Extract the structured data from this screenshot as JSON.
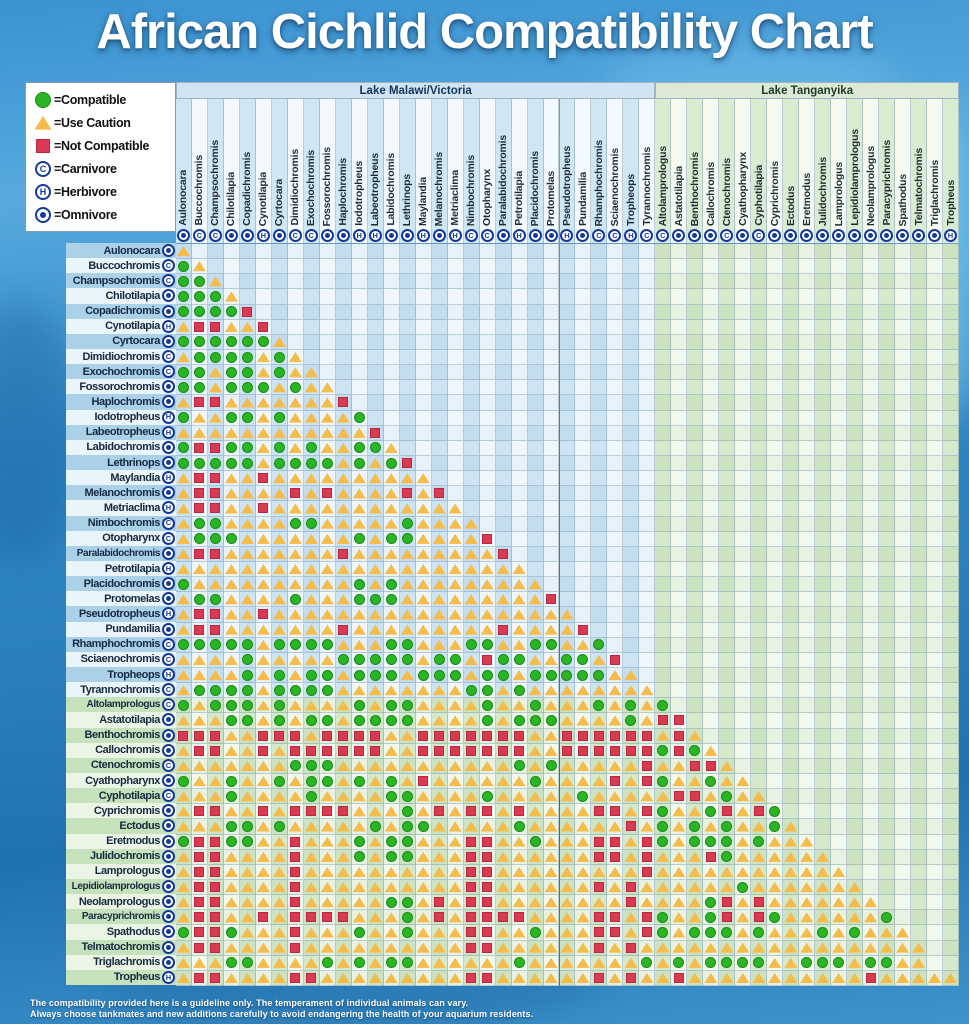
{
  "title": "African Cichlid Compatibility Chart",
  "legend": {
    "items": [
      {
        "icon": "compatible-icon",
        "label": "=Compatible"
      },
      {
        "icon": "use-caution-icon",
        "label": "=Use Caution"
      },
      {
        "icon": "not-compatible-icon",
        "label": "=Not Compatible"
      },
      {
        "icon": "carnivore-icon",
        "letter": "C",
        "label": "=Carnivore"
      },
      {
        "icon": "herbivore-icon",
        "letter": "H",
        "label": "=Herbivore"
      },
      {
        "icon": "omnivore-icon",
        "letter": "O",
        "label": "=Omnivore"
      }
    ]
  },
  "groups": [
    {
      "id": "malawi",
      "label": "Lake Malawi/Victoria",
      "start": 0,
      "count": 30
    },
    {
      "id": "tanganyika",
      "label": "Lake Tanganyika",
      "start": 30,
      "count": 19
    }
  ],
  "footer": {
    "line1": "The compatibility provided here is a guideline only. The temperament of individual animals can vary.",
    "line2": "Always choose tankmates and new additions carefully to avoid endangering the health of your aquarium residents."
  },
  "colors": {
    "compatible": "#2cb424",
    "caution": "#f5bb4b",
    "not_compatible": "#da3952",
    "diet_badge": "#15389b",
    "malawi_band": "#d2e4f4",
    "tanganyika_band": "#dcead4"
  },
  "chart_data": {
    "type": "heatmap",
    "title": "African Cichlid Compatibility Chart",
    "legend_position": "top-left",
    "cell_codes": {
      "G": "Compatible",
      "Y": "Use Caution",
      "R": "Not Compatible"
    },
    "diet_codes": {
      "C": "Carnivore",
      "H": "Herbivore",
      "O": "Omnivore"
    },
    "species": [
      {
        "name": "Aulonocara",
        "diet": "O",
        "lake": "malawi"
      },
      {
        "name": "Buccochromis",
        "diet": "C",
        "lake": "malawi"
      },
      {
        "name": "Champsochromis",
        "diet": "C",
        "lake": "malawi"
      },
      {
        "name": "Chilotilapia",
        "diet": "O",
        "lake": "malawi"
      },
      {
        "name": "Copadichromis",
        "diet": "O",
        "lake": "malawi"
      },
      {
        "name": "Cynotilapia",
        "diet": "H",
        "lake": "malawi"
      },
      {
        "name": "Cyrtocara",
        "diet": "O",
        "lake": "malawi"
      },
      {
        "name": "Dimidiochromis",
        "diet": "C",
        "lake": "malawi"
      },
      {
        "name": "Exochochromis",
        "diet": "C",
        "lake": "malawi"
      },
      {
        "name": "Fossorochromis",
        "diet": "O",
        "lake": "malawi"
      },
      {
        "name": "Haplochromis",
        "diet": "O",
        "lake": "malawi"
      },
      {
        "name": "Iodotropheus",
        "diet": "H",
        "lake": "malawi"
      },
      {
        "name": "Labeotropheus",
        "diet": "H",
        "lake": "malawi"
      },
      {
        "name": "Labidochromis",
        "diet": "O",
        "lake": "malawi"
      },
      {
        "name": "Lethrinops",
        "diet": "O",
        "lake": "malawi"
      },
      {
        "name": "Maylandia",
        "diet": "H",
        "lake": "malawi"
      },
      {
        "name": "Melanochromis",
        "diet": "O",
        "lake": "malawi"
      },
      {
        "name": "Metriaclima",
        "diet": "H",
        "lake": "malawi"
      },
      {
        "name": "Nimbochromis",
        "diet": "C",
        "lake": "malawi"
      },
      {
        "name": "Otopharynx",
        "diet": "C",
        "lake": "malawi"
      },
      {
        "name": "Paralabidochromis",
        "diet": "O",
        "lake": "malawi"
      },
      {
        "name": "Petrotilapia",
        "diet": "H",
        "lake": "malawi"
      },
      {
        "name": "Placidochromis",
        "diet": "O",
        "lake": "malawi"
      },
      {
        "name": "Protomelas",
        "diet": "O",
        "lake": "malawi"
      },
      {
        "name": "Pseudotropheus",
        "diet": "H",
        "lake": "malawi"
      },
      {
        "name": "Pundamilia",
        "diet": "O",
        "lake": "malawi"
      },
      {
        "name": "Rhamphochromis",
        "diet": "C",
        "lake": "malawi"
      },
      {
        "name": "Sciaenochromis",
        "diet": "C",
        "lake": "malawi"
      },
      {
        "name": "Tropheops",
        "diet": "H",
        "lake": "malawi"
      },
      {
        "name": "Tyrannochromis",
        "diet": "C",
        "lake": "malawi"
      },
      {
        "name": "Altolamprologus",
        "diet": "C",
        "lake": "tanganyika"
      },
      {
        "name": "Astatotilapia",
        "diet": "O",
        "lake": "tanganyika"
      },
      {
        "name": "Benthochromis",
        "diet": "O",
        "lake": "tanganyika"
      },
      {
        "name": "Callochromis",
        "diet": "O",
        "lake": "tanganyika"
      },
      {
        "name": "Ctenochromis",
        "diet": "C",
        "lake": "tanganyika"
      },
      {
        "name": "Cyathopharynx",
        "diet": "O",
        "lake": "tanganyika"
      },
      {
        "name": "Cyphotilapia",
        "diet": "C",
        "lake": "tanganyika"
      },
      {
        "name": "Cyprichromis",
        "diet": "O",
        "lake": "tanganyika"
      },
      {
        "name": "Ectodus",
        "diet": "O",
        "lake": "tanganyika"
      },
      {
        "name": "Eretmodus",
        "diet": "O",
        "lake": "tanganyika"
      },
      {
        "name": "Julidochromis",
        "diet": "O",
        "lake": "tanganyika"
      },
      {
        "name": "Lamprologus",
        "diet": "O",
        "lake": "tanganyika"
      },
      {
        "name": "Lepidiolamprologus",
        "diet": "O",
        "lake": "tanganyika"
      },
      {
        "name": "Neolamprologus",
        "diet": "O",
        "lake": "tanganyika"
      },
      {
        "name": "Paracyprichromis",
        "diet": "O",
        "lake": "tanganyika"
      },
      {
        "name": "Spathodus",
        "diet": "O",
        "lake": "tanganyika"
      },
      {
        "name": "Telmatochromis",
        "diet": "O",
        "lake": "tanganyika"
      },
      {
        "name": "Triglachromis",
        "diet": "O",
        "lake": "tanganyika"
      },
      {
        "name": "Tropheus",
        "diet": "H",
        "lake": "tanganyika"
      }
    ],
    "rows": [
      "Y",
      "GY",
      "GGY",
      "GGGY",
      "GGGGR",
      "YRRYYR",
      "GGGGGGY",
      "YGGGGYGY",
      "GGYGGYGYY",
      "GGYGGGYGYY",
      "YRRYYYYYYYR",
      "GYYGGYGYYYYG",
      "YYYYYYYYYYYYR",
      "GRRGGYGYGYYGGY",
      "GGGGGYGGGGYGYGR",
      "YRRYYRYYYYYYYYYY",
      "YRRYYYYRYRYYYYRYR",
      "YRRYYRYYYYYYYYYYYY",
      "YGGYYYYGGYYYYYGYYYY",
      "YGGGYYYYYYYGYGGYYYYR",
      "YRRYYYYYYYRYYYYYYYYYR",
      "YYYYYYYYYYYYYYYYYYYYYY",
      "GYYYYYYYYYYGYGYYYYYYYYY",
      "YGGYYYYGYYYGGGYYYYYYYYYR",
      "YRRYYRYYYYYYYYYYYYYYYYYYY",
      "YRRYYYYYYYRYYYYYYYYYRYYYYR",
      "GGGGGYGGGGYYYGGYYYGGYYGGYYG",
      "YYYYGYYYYYGGGGGYGGYRGGYYGGYR",
      "YYYYGYGYGGYGGGYGGGYGGYGGGGGYY",
      "YGGGGYGGGGYYYYYYYYGGYGYYYYYYYY",
      "GYGGGYGYYYYGYGGYYYYGYYGYYYGYGYG",
      "YYYGGYGYGGYGGGGYYYYGYGGGYYYYGYRR",
      "RRRYYRRRYRRRRYYRRRRRRRYYRRRRRRYRY",
      "YRRYYRYRRRRRRYYRRRRRRRYYRRRRRRGRGY",
      "YYYYYYYGGGYYYYYYYYYYYGYGYYYYYRYYRRY",
      "GYYGYYGYGGYGYGYRYYYYYYGYYYYRYRGYYGYY",
      "YYYGYYYYGYYYYGGYYYYGYYYYYGYYYYYRRYGYY",
      "YRRYYRYRRRRYYYGYRYRRYRYYYYRRYRGYYGRYRG",
      "YYYGGYGYYYYYGYGGYYYYYGYYYYYYRYGYGYGYYGY",
      "GRRGGYYRYYYGYGGYYYRRYYGYYYRRYRGYGGGYGYYY",
      "YRRYYYYRYYYGYGGYYYRRYYYYYYRRYRYYYRGYYYYYY",
      "YRRYYYYRYYYYYYYYYYRRYYYYYYYYYRYYYYYYYYYYYY",
      "YRRYYYYRYYYYYYYYYYRRYYYYYYRYRYYYYYYGYYYYYYY",
      "YRRYYYYRYYYYYGGYRYRRYYYYYYYYRYYYYGRYRYYYYYYY",
      "YRRYYRYRRRRYYYGYRYRRRRYYYYRRYRGYYGRYRGYYYYYYG",
      "GRRGYYYRYYYGYYGYYYRRYYGYYYRRYRGYGGGYGYYYGYGYYY",
      "YRRYYYYRYYYYYYYYYYRRYYYYYYRYRYYYYYYYYYYYYYYYYYY",
      "YYYGGYYYYGYGYGGYYYYYYGYYYYYYYGYGYGGGGYYGGGYGGYY",
      "YRRYYYYRRYYYYYYYYYRRYYYYYYRYRYYRYYYYYYYYYYYRYYYYY"
    ]
  }
}
